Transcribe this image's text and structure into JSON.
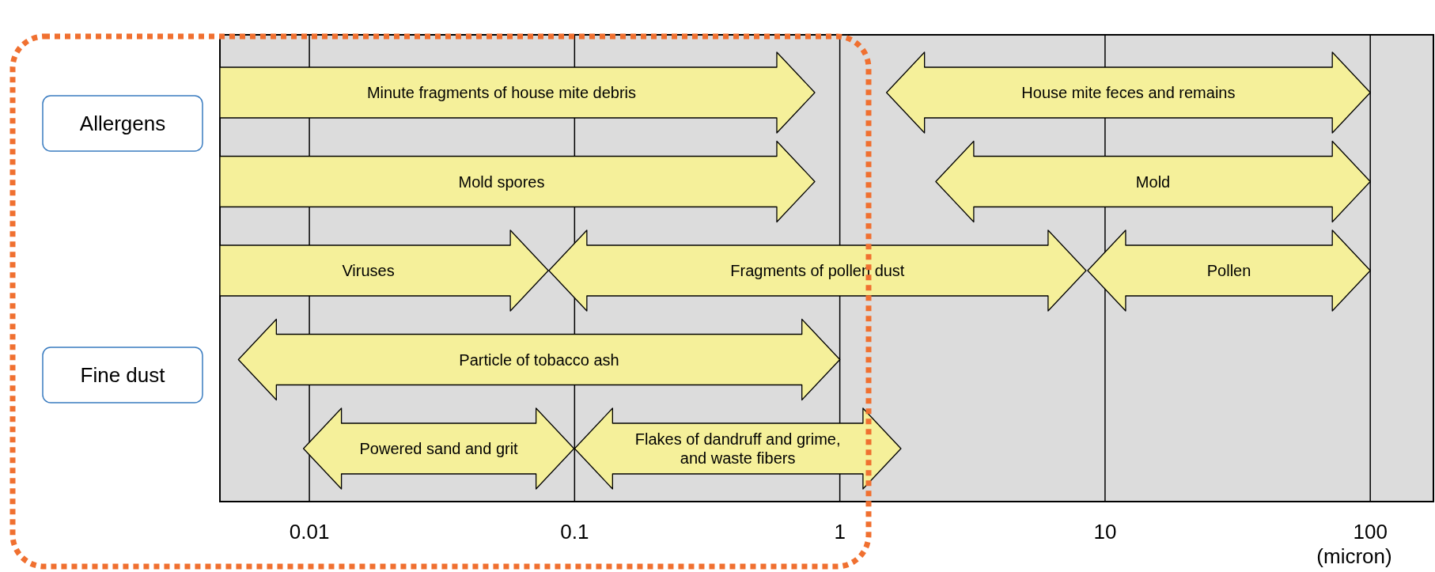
{
  "chart_data": {
    "type": "bar",
    "orientation": "horizontal",
    "log": "x",
    "grid": "x",
    "categories": [
      null,
      null,
      null,
      null,
      null
    ],
    "series": [
      {
        "color": "#f5f09a",
        "base": [
          0.0046,
          0.0046,
          0.0046,
          0.0054,
          0.0095
        ],
        "values": [
          0.8,
          0.8,
          0.075,
          0.995,
          0.09
        ],
        "value_labels": [
          "Minute fragments of house mite debris",
          "Mold spores",
          "Viruses",
          "Particle of tobacco ash",
          "Powered sand and grit"
        ]
      },
      {
        "color": "#f5f09a",
        "base": [
          1.5,
          2.3,
          0.08,
          null,
          0.1
        ],
        "values": [
          98.5,
          97.7,
          8.4,
          null,
          1.6
        ],
        "value_labels": [
          "House mite feces and remains",
          "Mold",
          "Fragments of pollen dust",
          null,
          "Flakes of dandruff and grime, and waste fibers"
        ]
      },
      {
        "color": "#f5f09a",
        "base": [
          null,
          null,
          8.6,
          null,
          null
        ],
        "values": [
          null,
          null,
          91.4,
          null,
          null
        ],
        "value_labels": [
          null,
          null,
          "Pollen",
          null,
          null
        ]
      }
    ],
    "xlim": [
      0.0046,
      173
    ],
    "xticks": [
      0.01,
      0.1,
      1,
      10,
      100
    ],
    "xlabel": "(micron)",
    "annotations": [
      "Allergens",
      "Fine dust"
    ]
  }
}
